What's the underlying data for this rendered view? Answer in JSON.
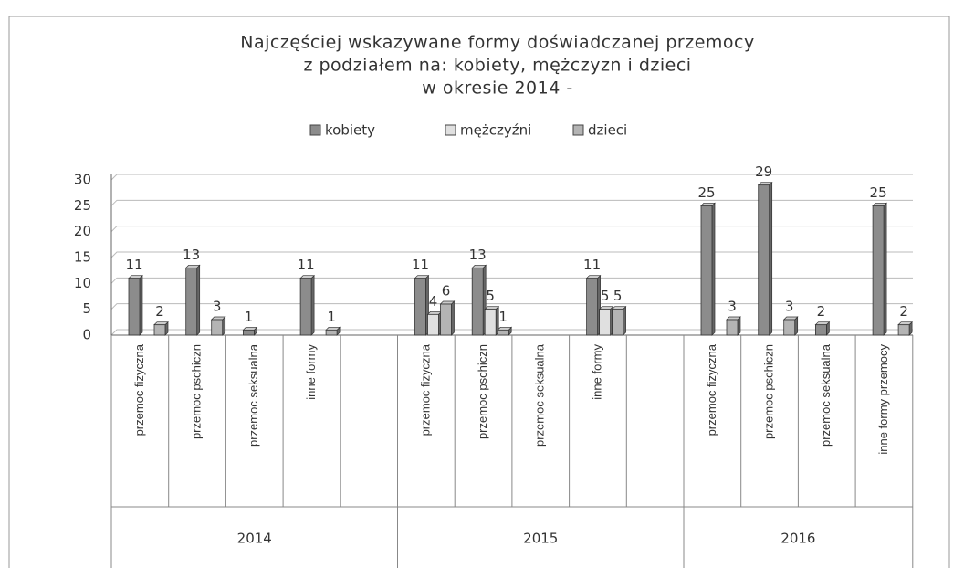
{
  "chart_data": {
    "type": "bar",
    "title": [
      "Najczęściej wskazywane formy doświadczanej przemocy",
      "z podziałem na: kobiety, mężczyzn i dzieci",
      "w okresie 2014 -"
    ],
    "categories": [
      "przemoc fizyczna",
      "przemoc pschiczn",
      "przemoc seksualna",
      "inne formy",
      null,
      "przemoc fizyczna",
      "przemoc pschiczn",
      "przemoc seksualna",
      "inne formy",
      null,
      "przemoc fizyczna",
      "przemoc pschiczn",
      "przemoc seksualna",
      "inne formy przemocy"
    ],
    "group_labels": [
      "2014",
      "2015",
      "2016"
    ],
    "series": [
      {
        "name": "kobiety",
        "color": "#8c8c8c",
        "values": [
          11,
          13,
          1,
          11,
          null,
          11,
          13,
          null,
          11,
          null,
          25,
          29,
          2,
          25
        ]
      },
      {
        "name": "mężczyźni",
        "color": "#e0e0e0",
        "values": [
          null,
          null,
          null,
          null,
          null,
          4,
          5,
          null,
          5,
          null,
          null,
          null,
          null,
          null
        ]
      },
      {
        "name": "dzieci",
        "color": "#b4b4b4",
        "values": [
          2,
          3,
          null,
          1,
          null,
          6,
          1,
          null,
          5,
          null,
          3,
          3,
          null,
          2
        ]
      }
    ],
    "ylim": [
      0,
      30
    ],
    "yticks": [
      0,
      5,
      10,
      15,
      20,
      25,
      30
    ],
    "grid": true,
    "legend": "top"
  }
}
